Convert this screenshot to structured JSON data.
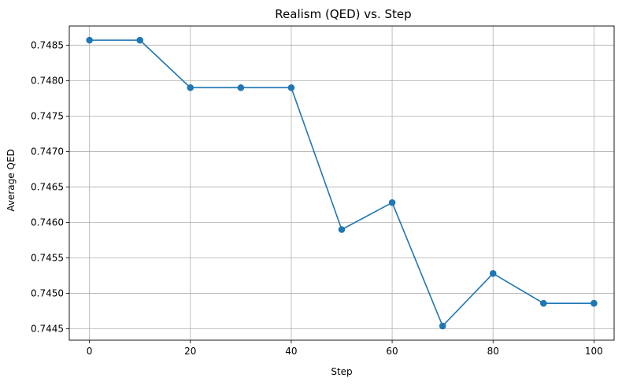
{
  "chart_data": {
    "type": "line",
    "title": "Realism (QED) vs. Step",
    "xlabel": "Step",
    "ylabel": "Average QED",
    "xlim": [
      -4,
      104
    ],
    "ylim": [
      0.74434,
      0.74877
    ],
    "x_ticks": [
      0,
      20,
      40,
      60,
      80,
      100
    ],
    "x_tick_labels": [
      "0",
      "20",
      "40",
      "60",
      "80",
      "100"
    ],
    "y_ticks": [
      0.7445,
      0.745,
      0.7455,
      0.746,
      0.7465,
      0.747,
      0.7475,
      0.748,
      0.7485
    ],
    "y_tick_labels": [
      "0.7445",
      "0.7450",
      "0.7455",
      "0.7460",
      "0.7465",
      "0.7470",
      "0.7475",
      "0.7480",
      "0.7485"
    ],
    "grid": true,
    "series": [
      {
        "color": "#1f77b4",
        "marker": "circle",
        "x": [
          0,
          10,
          20,
          30,
          40,
          50,
          60,
          70,
          80,
          90,
          100
        ],
        "y": [
          0.74857,
          0.74857,
          0.7479,
          0.7479,
          0.7479,
          0.7459,
          0.74628,
          0.74454,
          0.74528,
          0.74486,
          0.74486
        ]
      }
    ]
  }
}
